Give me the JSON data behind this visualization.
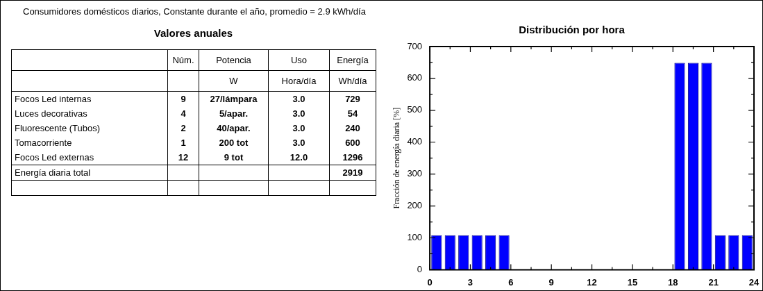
{
  "chart_data": [
    {
      "type": "other",
      "subtitle": "Consumidores domésticos diarios, Constante durante el año, promedio = 2.9 kWh/día",
      "title": "Valores anuales",
      "annotations": [
        null,
        "Núm.",
        "Potencia",
        "Uso",
        "Energía",
        null,
        null,
        "W",
        "Hora/día",
        "Wh/día",
        "Focos Led internas",
        "9",
        "27/lámpara",
        "3.0",
        "729",
        "Luces decorativas",
        "4",
        "5/apar.",
        "3.0",
        "54",
        "Fluorescente (Tubos)",
        "2",
        "40/apar.",
        "3.0",
        "240",
        "Tomacorriente",
        "1",
        "200 tot",
        "3.0",
        "600",
        "Focos Led externas",
        "12",
        "9 tot",
        "12.0",
        "1296",
        "Energía diaria total",
        null,
        null,
        null,
        "2919",
        null,
        null,
        null,
        null,
        null
      ]
    },
    {
      "type": "histogram",
      "title": "Distribución por hora",
      "ylabel": "Fracción de energía diaria [%]",
      "bins": [
        0,
        1,
        2,
        3,
        4,
        5,
        6,
        7,
        8,
        9,
        10,
        11,
        12,
        13,
        14,
        15,
        16,
        17,
        18,
        19,
        20,
        21,
        22,
        23,
        24
      ],
      "values": [
        108,
        108,
        108,
        108,
        108,
        108,
        0,
        0,
        0,
        0,
        0,
        0,
        0,
        0,
        0,
        0,
        0,
        0,
        649,
        649,
        649,
        108,
        108,
        108
      ],
      "color": "#0000ff",
      "xlim": [
        0,
        24
      ],
      "xticks": [
        0,
        3,
        6,
        9,
        12,
        15,
        18,
        21,
        24
      ],
      "ylim": [
        0,
        700
      ],
      "yticks": [
        0,
        100,
        200,
        300,
        400,
        500,
        600,
        700
      ]
    }
  ]
}
